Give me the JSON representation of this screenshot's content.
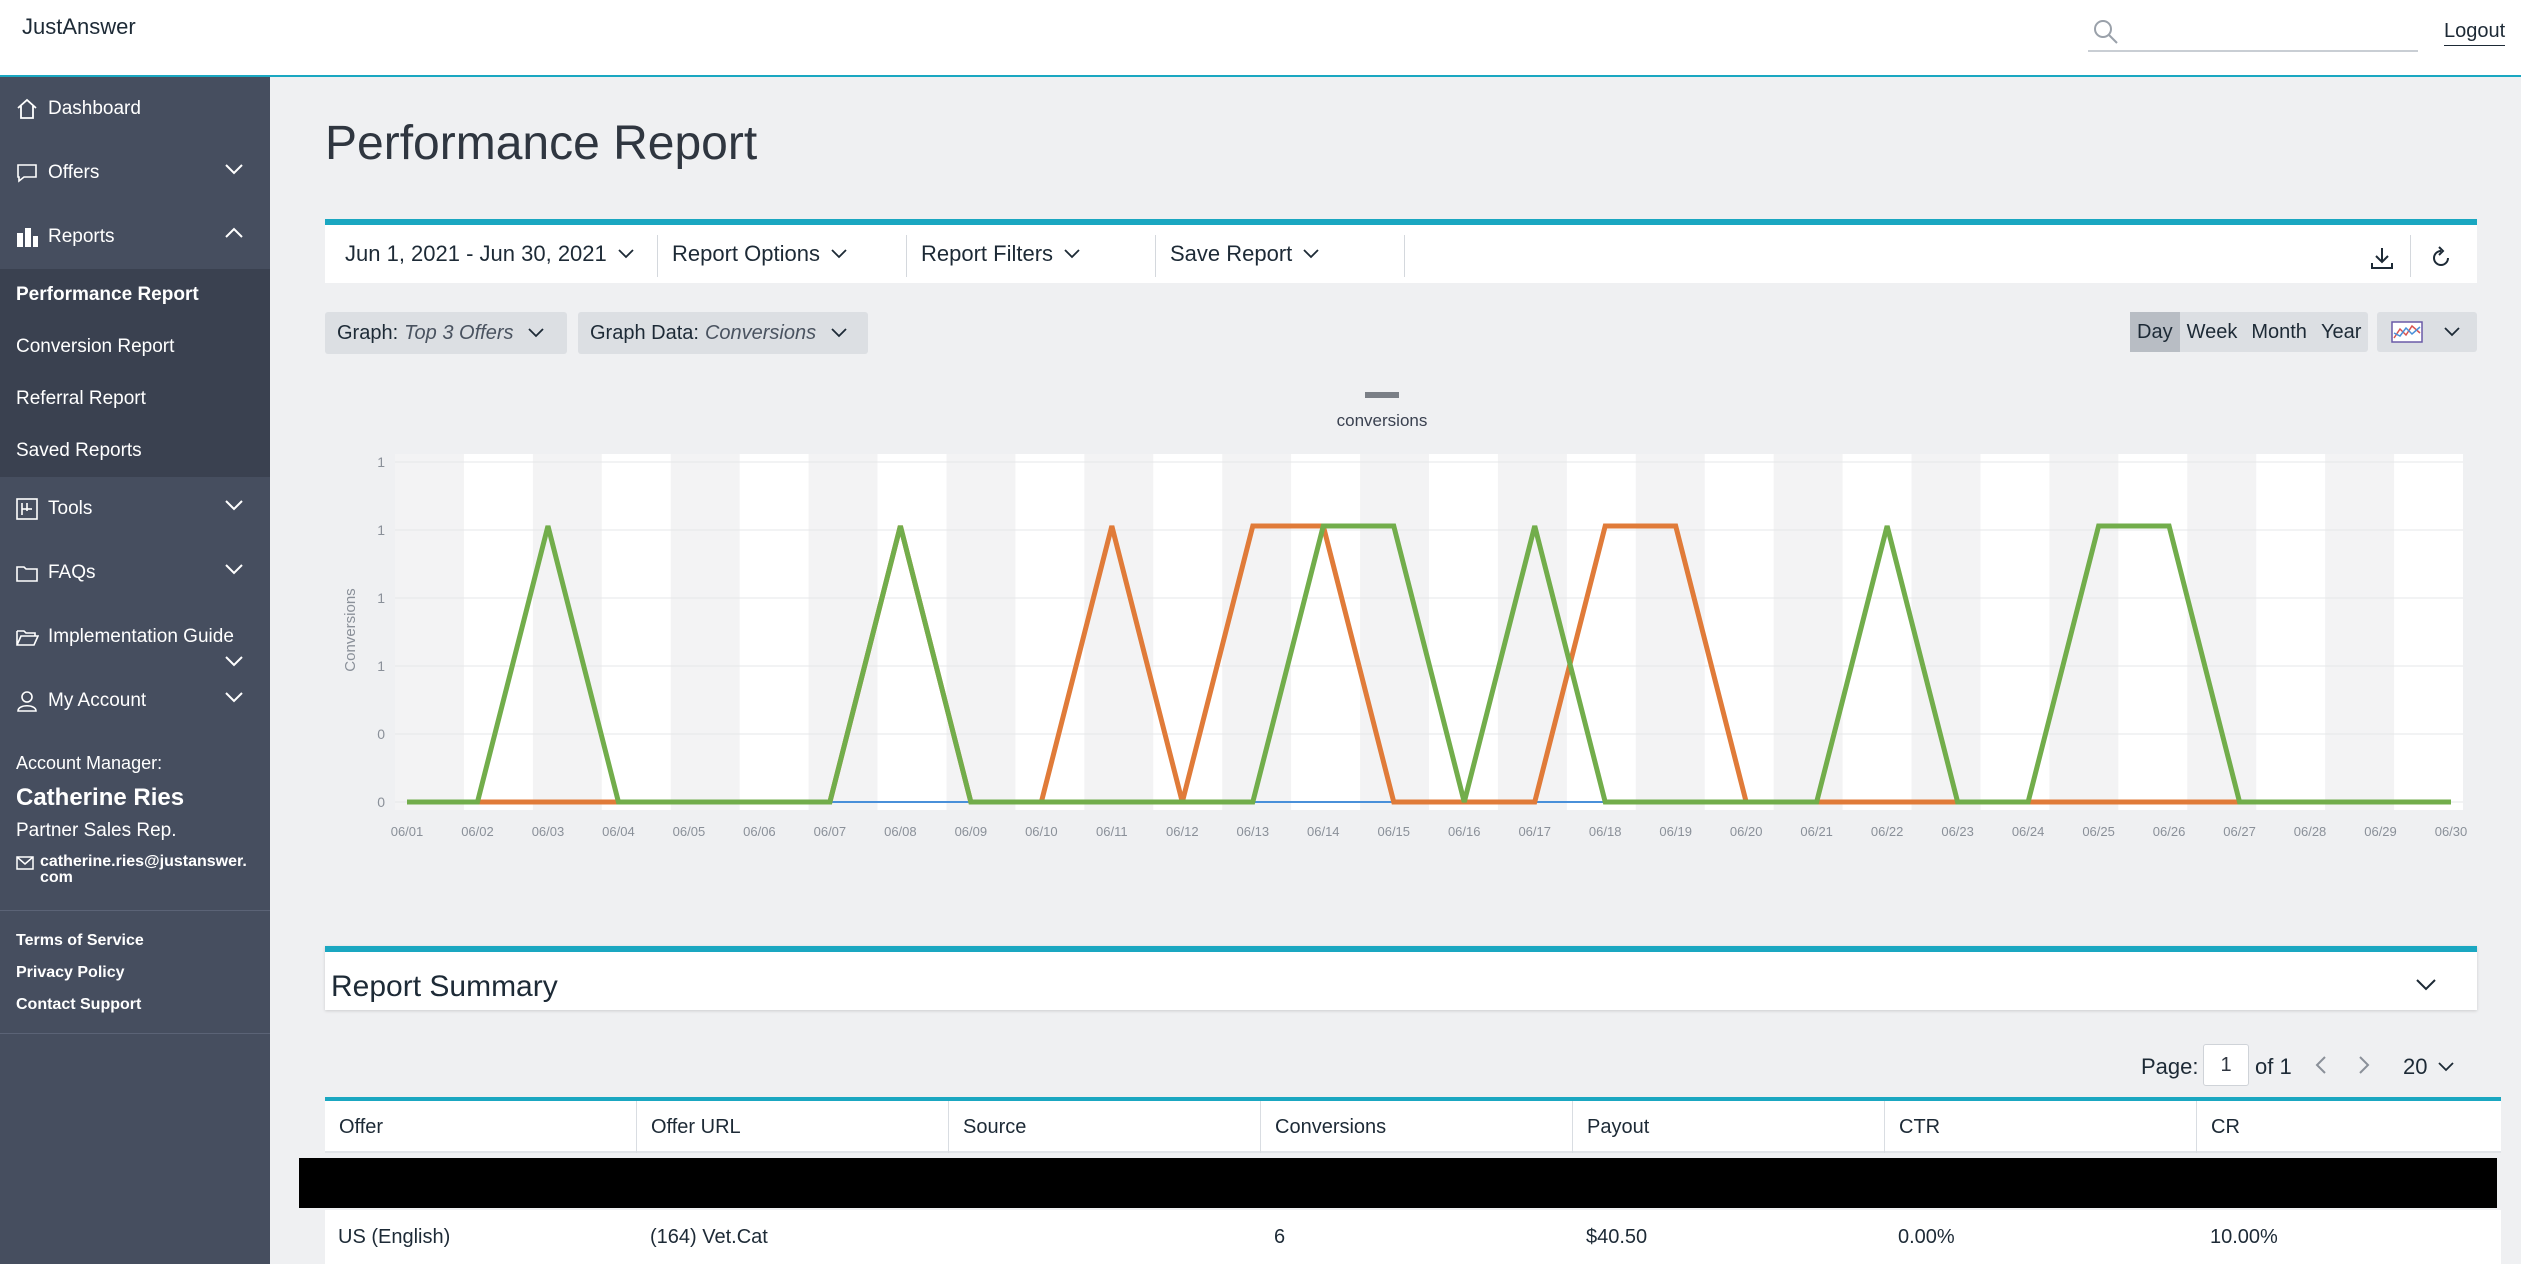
{
  "app": {
    "brand": "JustAnswer",
    "logout": "Logout",
    "search_placeholder": ""
  },
  "sidebar": {
    "dashboard": "Dashboard",
    "offers": "Offers",
    "reports": "Reports",
    "report_items": [
      "Performance Report",
      "Conversion Report",
      "Referral Report",
      "Saved Reports"
    ],
    "tools": "Tools",
    "faqs": "FAQs",
    "implementation": "Implementation Guide",
    "my_account": "My Account",
    "account": {
      "label": "Account Manager:",
      "name": "Catherine Ries",
      "role": "Partner Sales Rep.",
      "email_line1": "catherine.ries@justanswer.",
      "email_line2": "com"
    },
    "links": [
      "Terms of Service",
      "Privacy Policy",
      "Contact Support"
    ]
  },
  "page": {
    "title": "Performance Report"
  },
  "toolbar": {
    "date_range": "Jun 1, 2021 - Jun 30, 2021",
    "report_options": "Report Options",
    "report_filters": "Report Filters",
    "save_report": "Save Report"
  },
  "graph_controls": {
    "graph_label": "Graph:",
    "graph_value": "Top 3 Offers",
    "data_label": "Graph Data:",
    "data_value": "Conversions",
    "ranges": [
      "Day",
      "Week",
      "Month",
      "Year"
    ],
    "active_range": "Day"
  },
  "chart_data": {
    "type": "line",
    "legend": "conversions",
    "ylabel": "Conversions",
    "y_tick_labels": [
      "1",
      "1",
      "1",
      "1",
      "0",
      "0"
    ],
    "ylim": [
      0,
      1
    ],
    "x": [
      "06/01",
      "06/02",
      "06/03",
      "06/04",
      "06/05",
      "06/06",
      "06/07",
      "06/08",
      "06/09",
      "06/10",
      "06/11",
      "06/12",
      "06/13",
      "06/14",
      "06/15",
      "06/16",
      "06/17",
      "06/18",
      "06/19",
      "06/20",
      "06/21",
      "06/22",
      "06/23",
      "06/24",
      "06/25",
      "06/26",
      "06/27",
      "06/28",
      "06/29",
      "06/30"
    ],
    "series": [
      {
        "color": "#4a90d9",
        "values": [
          0,
          0,
          0,
          0,
          0,
          0,
          0,
          0,
          0,
          0,
          0,
          0,
          0,
          0,
          0,
          0,
          0,
          0,
          0,
          0,
          0,
          0,
          0,
          0,
          0,
          0,
          0,
          0,
          0,
          0
        ]
      },
      {
        "color": "#e07b39",
        "values": [
          0,
          0,
          0,
          0,
          0,
          0,
          0,
          1,
          0,
          0,
          1,
          0,
          1,
          1,
          0,
          0,
          0,
          1,
          1,
          0,
          0,
          0,
          0,
          0,
          0,
          0,
          0,
          0,
          0,
          0
        ]
      },
      {
        "color": "#72ad4b",
        "values": [
          0,
          0,
          1,
          0,
          0,
          0,
          0,
          1,
          0,
          0,
          0,
          0,
          0,
          1,
          1,
          0,
          1,
          0,
          0,
          0,
          0,
          1,
          0,
          0,
          1,
          1,
          0,
          0,
          0,
          0
        ]
      }
    ],
    "grid": true
  },
  "summary": {
    "title": "Report Summary"
  },
  "pager": {
    "label": "Page:",
    "current": "1",
    "of": "of 1",
    "per_page": "20"
  },
  "table": {
    "columns": [
      "Offer",
      "Offer URL",
      "Source",
      "Conversions",
      "Payout",
      "CTR",
      "CR"
    ],
    "rows": [
      {
        "offer": "US (English)",
        "offer_url": "(164) Vet.Cat",
        "source": "",
        "conversions": "6",
        "payout": "$40.50",
        "ctr": "0.00%",
        "cr": "10.00%"
      }
    ]
  }
}
